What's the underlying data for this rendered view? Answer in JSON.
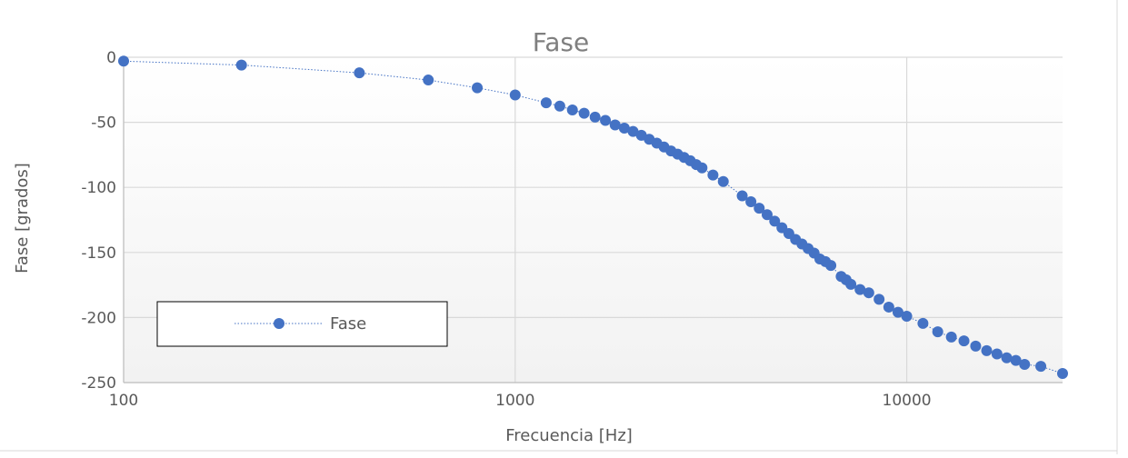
{
  "chart_data": {
    "type": "scatter",
    "title": "Fase",
    "xlabel": "Frecuencia [Hz]",
    "ylabel": "Fase [grados]",
    "x_scale": "log",
    "xlim": [
      100,
      25000
    ],
    "ylim": [
      -250,
      0
    ],
    "x_ticks": [
      100,
      1000,
      10000
    ],
    "y_ticks": [
      0,
      -50,
      -100,
      -150,
      -200,
      -250
    ],
    "grid": true,
    "legend": {
      "position": "bottom-left",
      "entries": [
        "Fase"
      ]
    },
    "colors": {
      "series": "#4472c4",
      "grid": "#d9d9d9",
      "axis_text": "#595959",
      "title": "#7f7f7f"
    },
    "series": [
      {
        "name": "Fase",
        "points": [
          [
            100,
            -3
          ],
          [
            200,
            -6
          ],
          [
            400,
            -12
          ],
          [
            600,
            -17.5
          ],
          [
            800,
            -23.5
          ],
          [
            1000,
            -29
          ],
          [
            1200,
            -35
          ],
          [
            1300,
            -37.5
          ],
          [
            1400,
            -40.5
          ],
          [
            1500,
            -43
          ],
          [
            1600,
            -46
          ],
          [
            1700,
            -48.5
          ],
          [
            1800,
            -52
          ],
          [
            1900,
            -54.5
          ],
          [
            2000,
            -57
          ],
          [
            2100,
            -60
          ],
          [
            2200,
            -63
          ],
          [
            2300,
            -66
          ],
          [
            2400,
            -69
          ],
          [
            2500,
            -72
          ],
          [
            2600,
            -74.5
          ],
          [
            2700,
            -77
          ],
          [
            2800,
            -79.5
          ],
          [
            2900,
            -82.5
          ],
          [
            3000,
            -85
          ],
          [
            3200,
            -90.5
          ],
          [
            3400,
            -95.5
          ],
          [
            3800,
            -106.5
          ],
          [
            4000,
            -111
          ],
          [
            4200,
            -116
          ],
          [
            4400,
            -121
          ],
          [
            4600,
            -126
          ],
          [
            4800,
            -131
          ],
          [
            5000,
            -135.5
          ],
          [
            5200,
            -140
          ],
          [
            5400,
            -143.5
          ],
          [
            5600,
            -147
          ],
          [
            5800,
            -150.5
          ],
          [
            6000,
            -155
          ],
          [
            6200,
            -157
          ],
          [
            6400,
            -160
          ],
          [
            6800,
            -168.5
          ],
          [
            7000,
            -171
          ],
          [
            7200,
            -174.5
          ],
          [
            7600,
            -178.5
          ],
          [
            8000,
            -181
          ],
          [
            8500,
            -186
          ],
          [
            9000,
            -192
          ],
          [
            9500,
            -196
          ],
          [
            10000,
            -199
          ],
          [
            11000,
            -204.5
          ],
          [
            12000,
            -211
          ],
          [
            13000,
            -215
          ],
          [
            14000,
            -218
          ],
          [
            15000,
            -222
          ],
          [
            16000,
            -225.5
          ],
          [
            17000,
            -228
          ],
          [
            18000,
            -231
          ],
          [
            19000,
            -233
          ],
          [
            20000,
            -236
          ],
          [
            22000,
            -237.5
          ],
          [
            25000,
            -243
          ]
        ]
      }
    ]
  }
}
